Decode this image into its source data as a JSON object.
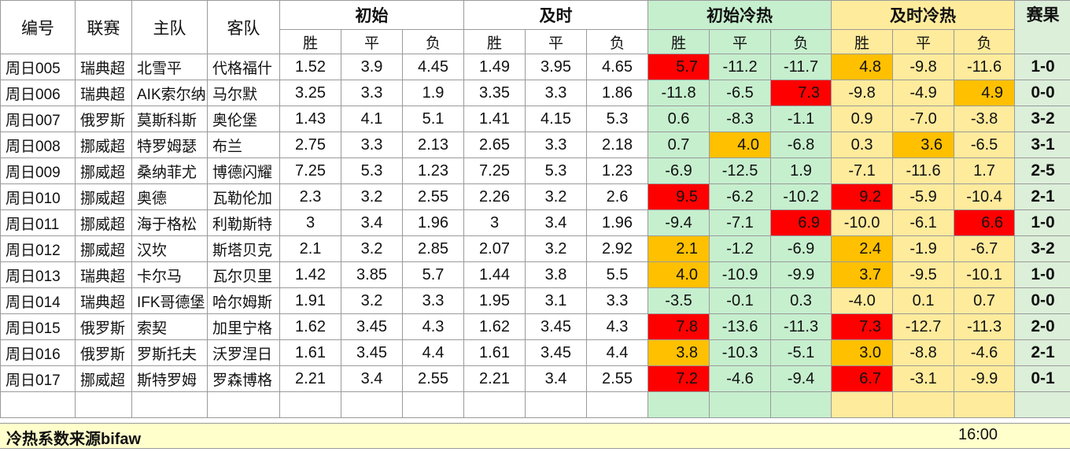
{
  "headers": {
    "id": "编号",
    "league": "联赛",
    "home": "主队",
    "away": "客队",
    "initial": "初始",
    "live": "及时",
    "initial_heat": "初始冷热",
    "live_heat": "及时冷热",
    "result": "赛果",
    "win": "胜",
    "draw": "平",
    "loss": "负"
  },
  "rows": [
    {
      "id": "周日005",
      "league": "瑞典超",
      "home": "北雪平",
      "away": "代格福什",
      "i": [
        "1.52",
        "3.9",
        "4.45"
      ],
      "l": [
        "1.49",
        "3.95",
        "4.65"
      ],
      "ih": [
        "5.7",
        "-11.2",
        "-11.7"
      ],
      "lh": [
        "4.8",
        "-9.8",
        "-11.6"
      ],
      "result": "1-0"
    },
    {
      "id": "周日006",
      "league": "瑞典超",
      "home": "AIK索尔纳",
      "away": "马尔默",
      "i": [
        "3.25",
        "3.3",
        "1.9"
      ],
      "l": [
        "3.35",
        "3.3",
        "1.86"
      ],
      "ih": [
        "-11.8",
        "-6.5",
        "7.3"
      ],
      "lh": [
        "-9.8",
        "-4.9",
        "4.9"
      ],
      "result": "0-0"
    },
    {
      "id": "周日007",
      "league": "俄罗斯",
      "home": "莫斯科斯",
      "away": "奥伦堡",
      "i": [
        "1.43",
        "4.1",
        "5.1"
      ],
      "l": [
        "1.41",
        "4.15",
        "5.3"
      ],
      "ih": [
        "0.6",
        "-8.3",
        "-1.1"
      ],
      "lh": [
        "0.9",
        "-7.0",
        "-3.8"
      ],
      "result": "3-2"
    },
    {
      "id": "周日008",
      "league": "挪威超",
      "home": "特罗姆瑟",
      "away": "布兰",
      "i": [
        "2.75",
        "3.3",
        "2.13"
      ],
      "l": [
        "2.65",
        "3.3",
        "2.18"
      ],
      "ih": [
        "0.7",
        "4.0",
        "-6.8"
      ],
      "lh": [
        "0.3",
        "3.6",
        "-6.5"
      ],
      "result": "3-1"
    },
    {
      "id": "周日009",
      "league": "挪威超",
      "home": "桑纳菲尤",
      "away": "博德闪耀",
      "i": [
        "7.25",
        "5.3",
        "1.23"
      ],
      "l": [
        "7.25",
        "5.3",
        "1.23"
      ],
      "ih": [
        "-6.9",
        "-12.5",
        "1.9"
      ],
      "lh": [
        "-7.1",
        "-11.6",
        "1.7"
      ],
      "result": "2-5"
    },
    {
      "id": "周日010",
      "league": "挪威超",
      "home": "奥德",
      "away": "瓦勒伦加",
      "i": [
        "2.3",
        "3.2",
        "2.55"
      ],
      "l": [
        "2.26",
        "3.2",
        "2.6"
      ],
      "ih": [
        "9.5",
        "-6.2",
        "-10.2"
      ],
      "lh": [
        "9.2",
        "-5.9",
        "-10.4"
      ],
      "result": "2-1"
    },
    {
      "id": "周日011",
      "league": "挪威超",
      "home": "海于格松",
      "away": "利勒斯特",
      "i": [
        "3",
        "3.4",
        "1.96"
      ],
      "l": [
        "3",
        "3.4",
        "1.96"
      ],
      "ih": [
        "-9.4",
        "-7.1",
        "6.9"
      ],
      "lh": [
        "-10.0",
        "-6.1",
        "6.6"
      ],
      "result": "1-0"
    },
    {
      "id": "周日012",
      "league": "挪威超",
      "home": "汉坎",
      "away": "斯塔贝克",
      "i": [
        "2.1",
        "3.2",
        "2.85"
      ],
      "l": [
        "2.07",
        "3.2",
        "2.92"
      ],
      "ih": [
        "2.1",
        "-1.2",
        "-6.9"
      ],
      "lh": [
        "2.4",
        "-1.9",
        "-6.7"
      ],
      "result": "3-2"
    },
    {
      "id": "周日013",
      "league": "瑞典超",
      "home": "卡尔马",
      "away": "瓦尔贝里",
      "i": [
        "1.42",
        "3.85",
        "5.7"
      ],
      "l": [
        "1.44",
        "3.8",
        "5.5"
      ],
      "ih": [
        "4.0",
        "-10.9",
        "-9.9"
      ],
      "lh": [
        "3.7",
        "-9.5",
        "-10.1"
      ],
      "result": "1-0"
    },
    {
      "id": "周日014",
      "league": "瑞典超",
      "home": "IFK哥德堡",
      "away": "哈尔姆斯",
      "i": [
        "1.91",
        "3.2",
        "3.3"
      ],
      "l": [
        "1.95",
        "3.1",
        "3.3"
      ],
      "ih": [
        "-3.5",
        "-0.1",
        "0.3"
      ],
      "lh": [
        "-4.0",
        "0.1",
        "0.7"
      ],
      "result": "0-0"
    },
    {
      "id": "周日015",
      "league": "俄罗斯",
      "home": "索契",
      "away": "加里宁格",
      "i": [
        "1.62",
        "3.45",
        "4.3"
      ],
      "l": [
        "1.62",
        "3.45",
        "4.3"
      ],
      "ih": [
        "7.8",
        "-13.6",
        "-11.3"
      ],
      "lh": [
        "7.3",
        "-12.7",
        "-11.3"
      ],
      "result": "2-0"
    },
    {
      "id": "周日016",
      "league": "俄罗斯",
      "home": "罗斯托夫",
      "away": "沃罗涅日",
      "i": [
        "1.61",
        "3.45",
        "4.4"
      ],
      "l": [
        "1.61",
        "3.45",
        "4.4"
      ],
      "ih": [
        "3.8",
        "-10.3",
        "-5.1"
      ],
      "lh": [
        "3.0",
        "-8.8",
        "-4.6"
      ],
      "result": "2-1"
    },
    {
      "id": "周日017",
      "league": "挪威超",
      "home": "斯特罗姆",
      "away": "罗森博格",
      "i": [
        "2.21",
        "3.4",
        "2.55"
      ],
      "l": [
        "2.21",
        "3.4",
        "2.55"
      ],
      "ih": [
        "7.2",
        "-4.6",
        "-9.4"
      ],
      "lh": [
        "6.7",
        "-3.1",
        "-9.9"
      ],
      "result": "0-1"
    }
  ],
  "highlights": {
    "ih": [
      [
        "red",
        null,
        null
      ],
      [
        null,
        null,
        "red"
      ],
      [
        null,
        null,
        null
      ],
      [
        null,
        "orange",
        null
      ],
      [
        null,
        null,
        null
      ],
      [
        "red",
        null,
        null
      ],
      [
        null,
        null,
        "red"
      ],
      [
        "orange",
        null,
        null
      ],
      [
        "orange",
        null,
        null
      ],
      [
        null,
        null,
        null
      ],
      [
        "red",
        null,
        null
      ],
      [
        "orange",
        null,
        null
      ],
      [
        "red",
        null,
        null
      ]
    ],
    "lh": [
      [
        "orange",
        null,
        null
      ],
      [
        null,
        null,
        "orange"
      ],
      [
        null,
        null,
        null
      ],
      [
        null,
        "orange",
        null
      ],
      [
        null,
        null,
        null
      ],
      [
        "red",
        null,
        null
      ],
      [
        null,
        null,
        "red"
      ],
      [
        "orange",
        null,
        null
      ],
      [
        "orange",
        null,
        null
      ],
      [
        null,
        null,
        null
      ],
      [
        "red",
        null,
        null
      ],
      [
        "orange",
        null,
        null
      ],
      [
        "red",
        null,
        null
      ]
    ]
  },
  "colors": {
    "heat_bg_initial": "#c6efce",
    "heat_bg_live": "#ffeb9c",
    "result_bg": "#dcefd9",
    "hot_red": "#ff0000",
    "warm_orange": "#ffc000",
    "footer_bg": "#ffffcc"
  },
  "footer": {
    "source": "冷热系数来源bifaw",
    "time": "16:00"
  }
}
